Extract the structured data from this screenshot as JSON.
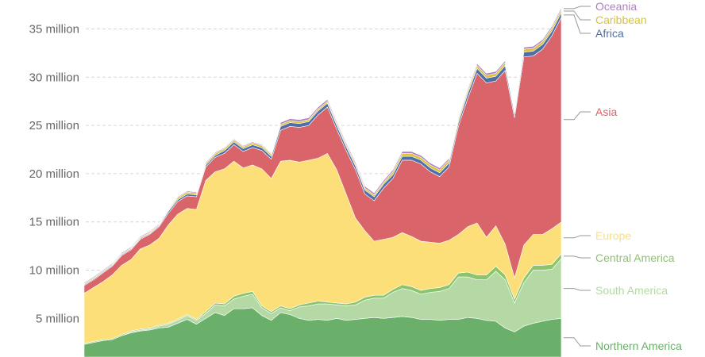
{
  "chart_data": {
    "type": "area",
    "stacked": true,
    "grid": true,
    "legend_placement": "right",
    "y_range": [
      1000000,
      38000000
    ],
    "y_ticks": [
      {
        "value": 5000000,
        "label": "5 million"
      },
      {
        "value": 10000000,
        "label": "10 million"
      },
      {
        "value": 15000000,
        "label": "15 million"
      },
      {
        "value": 20000000,
        "label": "20 million"
      },
      {
        "value": 25000000,
        "label": "25 million"
      },
      {
        "value": 30000000,
        "label": "30 million"
      },
      {
        "value": 35000000,
        "label": "35 million"
      }
    ],
    "series": [
      {
        "name": "Northern America",
        "color": "#6aaf6a",
        "values": [
          2.3,
          2.5,
          2.7,
          2.8,
          3.2,
          3.5,
          3.7,
          3.8,
          4.0,
          4.1,
          4.5,
          4.9,
          4.4,
          5.0,
          5.6,
          5.3,
          6.0,
          6.0,
          6.1,
          5.3,
          4.8,
          5.6,
          5.4,
          5.0,
          4.8,
          4.9,
          4.8,
          5.0,
          4.8,
          4.9,
          5.0,
          5.1,
          5.0,
          5.1,
          5.2,
          5.1,
          4.9,
          4.9,
          4.8,
          4.9,
          4.9,
          5.1,
          5.0,
          4.8,
          4.7,
          4.0,
          3.6,
          4.2,
          4.5,
          4.7,
          4.9,
          5.0
        ]
      },
      {
        "name": "South America",
        "color": "#b5d9a5",
        "values": [
          0.0,
          0.0,
          0.0,
          0.0,
          0.0,
          0.1,
          0.1,
          0.1,
          0.2,
          0.3,
          0.3,
          0.4,
          0.4,
          0.5,
          0.8,
          1.0,
          1.0,
          1.3,
          1.4,
          0.8,
          0.7,
          0.5,
          0.4,
          1.2,
          1.5,
          1.6,
          1.7,
          1.4,
          1.5,
          1.5,
          1.9,
          2.0,
          2.1,
          2.6,
          2.9,
          2.8,
          2.6,
          2.8,
          3.0,
          3.2,
          4.4,
          4.2,
          4.0,
          4.2,
          5.2,
          5.0,
          3.0,
          4.5,
          5.5,
          5.3,
          5.2,
          6.2
        ]
      },
      {
        "name": "Central America",
        "color": "#8cc46d",
        "values": [
          0.1,
          0.1,
          0.1,
          0.1,
          0.1,
          0.1,
          0.1,
          0.1,
          0.1,
          0.1,
          0.1,
          0.1,
          0.1,
          0.2,
          0.2,
          0.2,
          0.3,
          0.3,
          0.3,
          0.2,
          0.2,
          0.2,
          0.2,
          0.2,
          0.3,
          0.3,
          0.2,
          0.2,
          0.2,
          0.3,
          0.3,
          0.3,
          0.3,
          0.3,
          0.4,
          0.4,
          0.4,
          0.4,
          0.4,
          0.4,
          0.4,
          0.5,
          0.5,
          0.5,
          0.5,
          0.5,
          0.4,
          0.5,
          0.5,
          0.5,
          0.5,
          0.5
        ]
      },
      {
        "name": "Europe",
        "color": "#fddf7a",
        "values": [
          5.2,
          5.6,
          6.0,
          6.6,
          7.2,
          7.4,
          8.3,
          8.6,
          9.0,
          10.2,
          10.9,
          11.0,
          11.4,
          13.6,
          13.6,
          14.0,
          14.0,
          13.0,
          13.1,
          14.2,
          13.8,
          15.0,
          15.4,
          14.8,
          14.8,
          14.8,
          15.4,
          13.8,
          11.4,
          8.7,
          6.9,
          5.6,
          5.8,
          5.4,
          5.4,
          5.2,
          5.1,
          4.8,
          4.6,
          4.6,
          4.0,
          4.7,
          5.4,
          3.9,
          4.2,
          3.2,
          2.2,
          3.4,
          3.2,
          3.2,
          3.7,
          3.3
        ]
      },
      {
        "name": "Asia",
        "color": "#d9646a",
        "values": [
          0.8,
          0.8,
          0.9,
          0.9,
          1.0,
          1.0,
          1.0,
          1.1,
          1.2,
          1.2,
          1.3,
          1.3,
          1.3,
          1.4,
          1.5,
          1.6,
          1.7,
          1.7,
          1.8,
          1.9,
          2.0,
          3.2,
          3.5,
          3.6,
          3.6,
          4.5,
          4.8,
          4.2,
          4.5,
          5.0,
          3.8,
          4.2,
          5.3,
          6.1,
          7.5,
          7.9,
          8.0,
          7.3,
          6.9,
          7.6,
          11.2,
          13.3,
          15.5,
          16.0,
          15.0,
          18.0,
          16.6,
          19.5,
          18.5,
          19.2,
          20.0,
          21.2
        ]
      },
      {
        "name": "Africa",
        "color": "#4f6fa8",
        "values": [
          0.1,
          0.1,
          0.1,
          0.1,
          0.1,
          0.1,
          0.1,
          0.1,
          0.1,
          0.2,
          0.2,
          0.2,
          0.2,
          0.2,
          0.2,
          0.3,
          0.3,
          0.3,
          0.3,
          0.3,
          0.3,
          0.4,
          0.4,
          0.4,
          0.4,
          0.4,
          0.4,
          0.4,
          0.4,
          0.4,
          0.4,
          0.4,
          0.4,
          0.4,
          0.4,
          0.4,
          0.4,
          0.4,
          0.4,
          0.4,
          0.4,
          0.5,
          0.5,
          0.5,
          0.5,
          0.5,
          0.4,
          0.5,
          0.5,
          0.5,
          0.5,
          0.5
        ]
      },
      {
        "name": "Caribbean",
        "color": "#d8c33a",
        "values": [
          0.1,
          0.1,
          0.1,
          0.1,
          0.1,
          0.1,
          0.1,
          0.1,
          0.1,
          0.1,
          0.2,
          0.2,
          0.2,
          0.2,
          0.2,
          0.2,
          0.2,
          0.2,
          0.2,
          0.2,
          0.2,
          0.2,
          0.2,
          0.2,
          0.2,
          0.2,
          0.2,
          0.2,
          0.2,
          0.2,
          0.2,
          0.2,
          0.2,
          0.3,
          0.3,
          0.3,
          0.3,
          0.3,
          0.3,
          0.3,
          0.3,
          0.3,
          0.3,
          0.3,
          0.3,
          0.3,
          0.2,
          0.3,
          0.3,
          0.3,
          0.3,
          0.3
        ]
      },
      {
        "name": "Oceania",
        "color": "#b07fc0",
        "values": [
          0.1,
          0.1,
          0.1,
          0.1,
          0.1,
          0.1,
          0.1,
          0.1,
          0.1,
          0.1,
          0.1,
          0.1,
          0.1,
          0.1,
          0.1,
          0.1,
          0.1,
          0.1,
          0.1,
          0.1,
          0.1,
          0.2,
          0.2,
          0.2,
          0.2,
          0.2,
          0.2,
          0.2,
          0.2,
          0.2,
          0.2,
          0.2,
          0.2,
          0.2,
          0.2,
          0.2,
          0.2,
          0.2,
          0.2,
          0.2,
          0.2,
          0.2,
          0.2,
          0.2,
          0.2,
          0.2,
          0.2,
          0.2,
          0.2,
          0.2,
          0.2,
          0.2
        ]
      }
    ],
    "value_unit_multiplier": 1000000
  }
}
